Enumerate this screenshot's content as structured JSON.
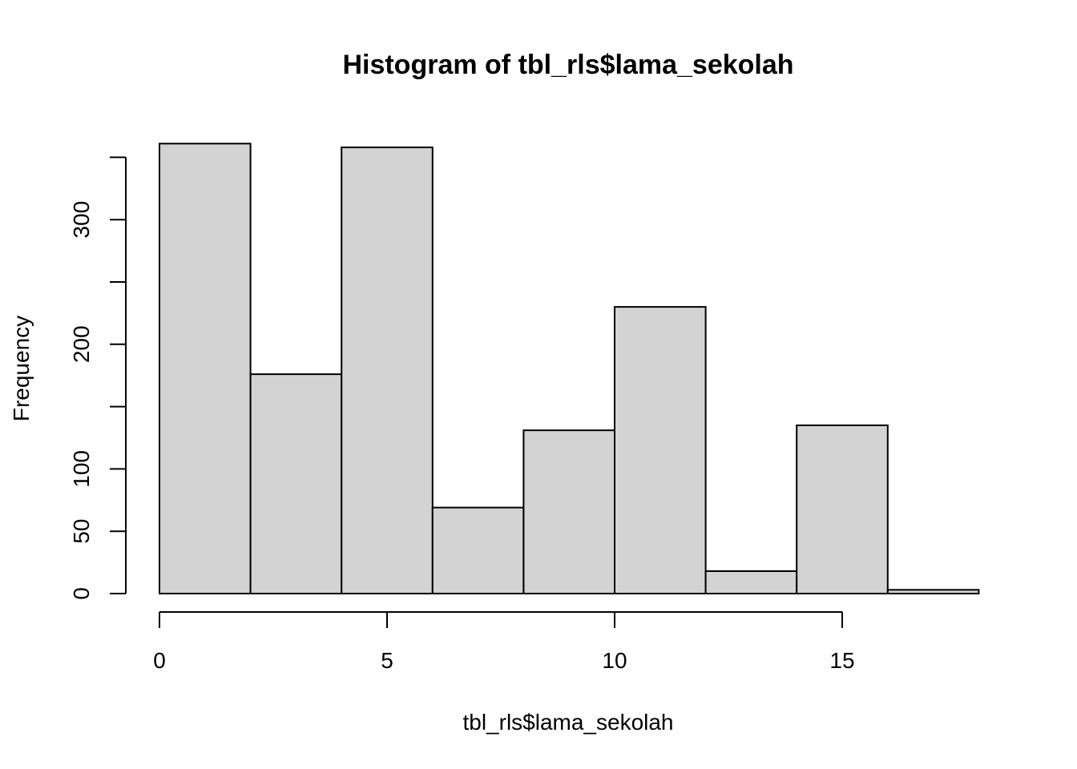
{
  "chart_data": {
    "type": "bar",
    "subtype": "histogram",
    "title": "Histogram of tbl_rls$lama_sekolah",
    "xlabel": "tbl_rls$lama_sekolah",
    "ylabel": "Frequency",
    "bins": [
      {
        "x0": 0,
        "x1": 2,
        "count": 361
      },
      {
        "x0": 2,
        "x1": 4,
        "count": 176
      },
      {
        "x0": 4,
        "x1": 6,
        "count": 358
      },
      {
        "x0": 6,
        "x1": 8,
        "count": 69
      },
      {
        "x0": 8,
        "x1": 10,
        "count": 131
      },
      {
        "x0": 10,
        "x1": 12,
        "count": 230
      },
      {
        "x0": 12,
        "x1": 14,
        "count": 18
      },
      {
        "x0": 14,
        "x1": 16,
        "count": 135
      },
      {
        "x0": 16,
        "x1": 18,
        "count": 3
      }
    ],
    "xlim": [
      0,
      18
    ],
    "ylim": [
      0,
      350
    ],
    "x_ticks": [
      0,
      5,
      10,
      15
    ],
    "y_ticks": [
      0,
      50,
      100,
      150,
      200,
      250,
      300,
      350
    ],
    "y_tick_labels": [
      {
        "value": 0,
        "label": "0"
      },
      {
        "value": 50,
        "label": "50"
      },
      {
        "value": 100,
        "label": "100"
      },
      {
        "value": 200,
        "label": "200"
      },
      {
        "value": 300,
        "label": "300"
      }
    ],
    "grid": false,
    "colors": {
      "bar_fill": "#d3d3d3",
      "bar_stroke": "#000000"
    }
  }
}
